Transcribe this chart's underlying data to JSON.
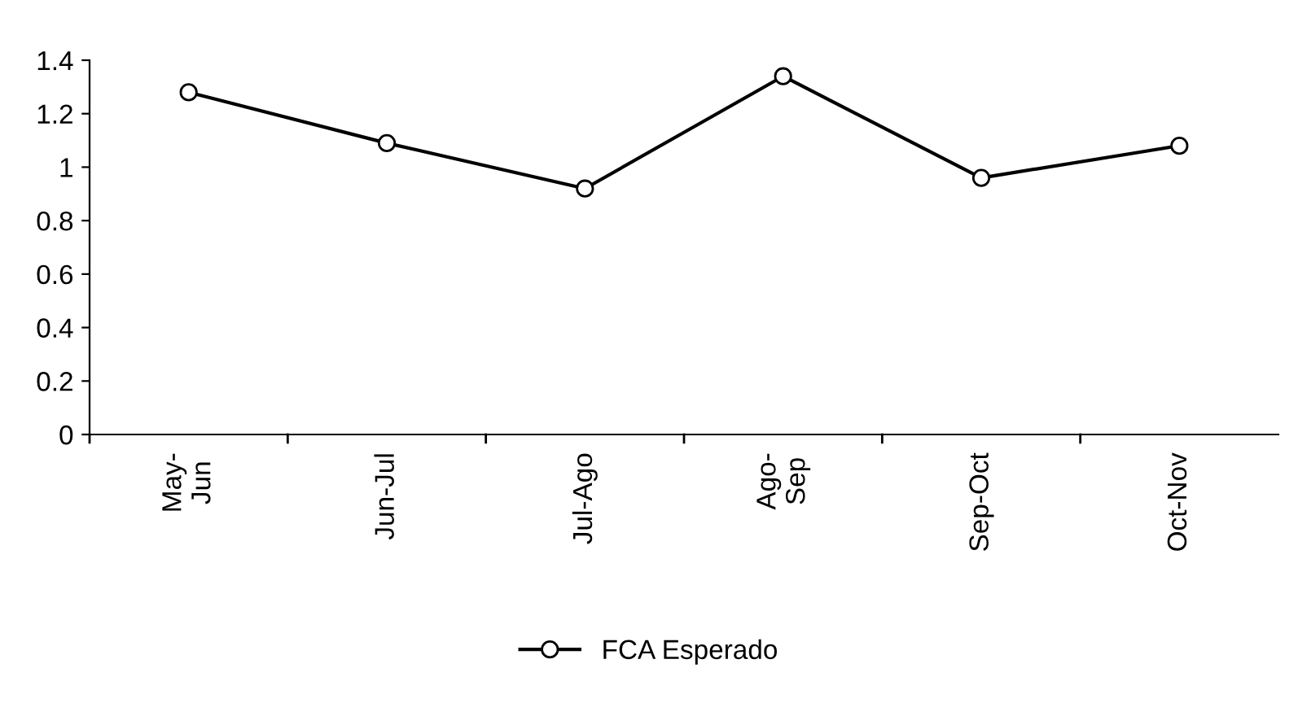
{
  "chart_data": {
    "type": "line",
    "categories": [
      "May-\nJun",
      "Jun-Jul",
      "Jul-Ago",
      "Ago-\nSep",
      "Sep-Oct",
      "Oct-Nov"
    ],
    "series": [
      {
        "name": "FCA Esperado",
        "color": "#000000",
        "values": [
          1.28,
          1.09,
          0.92,
          1.34,
          0.96,
          1.08
        ]
      }
    ],
    "ylim": [
      0,
      1.4
    ],
    "yticks": [
      0,
      {
        "value": 0.2,
        "label": "0.2"
      },
      {
        "value": 0.4,
        "label": "0.4"
      },
      {
        "value": 0.6,
        "label": "0.6"
      },
      {
        "value": 0.8,
        "label": "0.8"
      },
      1,
      {
        "value": 1.2,
        "label": "1.2"
      },
      {
        "value": 1.4,
        "label": "1.4"
      }
    ],
    "grid": false,
    "legend": "bottom",
    "marker": "circle",
    "line_style": "solid"
  }
}
